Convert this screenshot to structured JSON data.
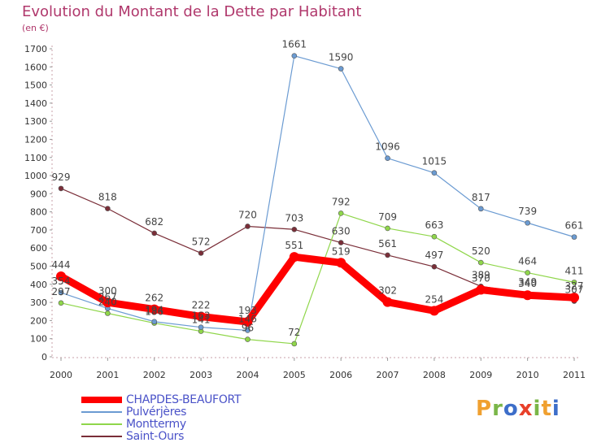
{
  "title": "Evolution du Montant de la Dette par Habitant",
  "subtitle": "(en €)",
  "brand": {
    "text": "Proxiti",
    "letters": [
      {
        "ch": "P",
        "color": "#f0a030"
      },
      {
        "ch": "r",
        "color": "#7ab648"
      },
      {
        "ch": "o",
        "color": "#3d6ec9"
      },
      {
        "ch": "x",
        "color": "#e8402a"
      },
      {
        "ch": "i",
        "color": "#7ab648"
      },
      {
        "ch": "t",
        "color": "#f0a030"
      },
      {
        "ch": "i",
        "color": "#3d6ec9"
      }
    ]
  },
  "chart_data": {
    "type": "line",
    "title": "Evolution du Montant de la Dette par Habitant",
    "subtitle": "(en €)",
    "x": [
      "2000",
      "2001",
      "2002",
      "2003",
      "2004",
      "2005",
      "2006",
      "2007",
      "2008",
      "2009",
      "2010",
      "2011"
    ],
    "yticks": [
      0,
      100,
      200,
      300,
      400,
      500,
      600,
      700,
      800,
      900,
      1000,
      1100,
      1200,
      1300,
      1400,
      1500,
      1600,
      1700
    ],
    "ylim": [
      0,
      1700
    ],
    "grid": false,
    "legend": "bottom-left",
    "series": [
      {
        "name": "Saint-Ours",
        "color": "#7a2e38",
        "values": [
          929,
          818,
          682,
          572,
          720,
          703,
          630,
          561,
          497,
          389,
          349,
          307
        ],
        "width": 1.2
      },
      {
        "name": "Monttermy",
        "color": "#8fd64a",
        "values": [
          297,
          240,
          186,
          141,
          96,
          72,
          792,
          709,
          663,
          520,
          464,
          411
        ],
        "width": 1.2
      },
      {
        "name": "Pulvérjères",
        "color": "#6b9bd2",
        "values": [
          354,
          267,
          194,
          163,
          146,
          1661,
          1590,
          1096,
          1015,
          817,
          739,
          661
        ],
        "width": 1.2
      },
      {
        "name": "CHAPDES-BEAUFORT",
        "color": "#ff0000",
        "values": [
          444,
          300,
          262,
          222,
          193,
          551,
          519,
          302,
          254,
          370,
          340,
          327
        ],
        "width": 9
      }
    ],
    "legend_order": [
      "CHAPDES-BEAUFORT",
      "Pulvérjères",
      "Monttermy",
      "Saint-Ours"
    ]
  }
}
